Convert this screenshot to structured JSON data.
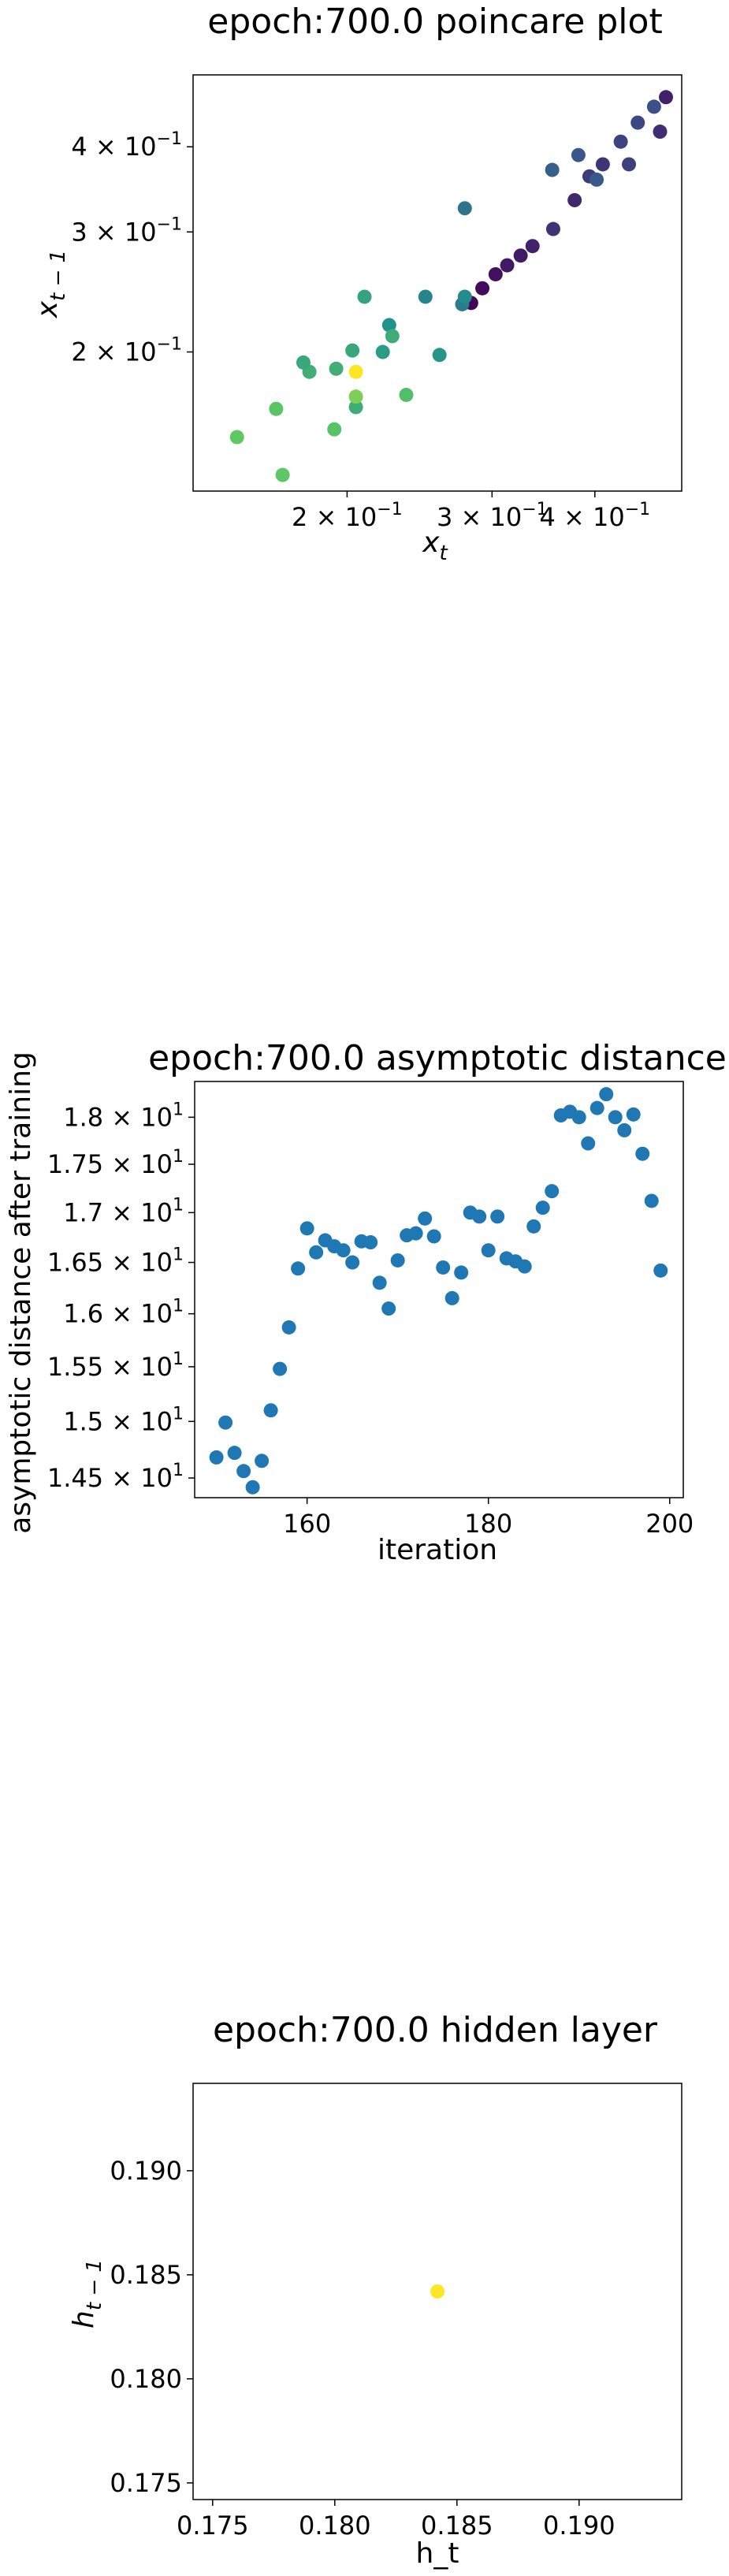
{
  "chart_data": [
    {
      "type": "scatter",
      "title": "epoch:700.0 poincare plot",
      "xlabel": "x_t",
      "ylabel": "x_{t-1}",
      "xscale": "log",
      "yscale": "log",
      "xlim": [
        0.13,
        0.51
      ],
      "ylim": [
        0.125,
        0.51
      ],
      "grid": false,
      "x_ticks": [
        {
          "value": 0.2,
          "mantissa": "2",
          "exponent": "−1"
        },
        {
          "value": 0.3,
          "mantissa": "3",
          "exponent": "−1"
        },
        {
          "value": 0.4,
          "mantissa": "4",
          "exponent": "−1"
        }
      ],
      "y_ticks": [
        {
          "value": 0.2,
          "mantissa": "2",
          "exponent": "−1"
        },
        {
          "value": 0.3,
          "mantissa": "3",
          "exponent": "−1"
        },
        {
          "value": 0.4,
          "mantissa": "4",
          "exponent": "−1"
        }
      ],
      "colormap": "viridis",
      "points": [
        {
          "x": 0.283,
          "y": 0.236,
          "c": 0.02
        },
        {
          "x": 0.292,
          "y": 0.248,
          "c": 0.03
        },
        {
          "x": 0.303,
          "y": 0.26,
          "c": 0.05
        },
        {
          "x": 0.313,
          "y": 0.268,
          "c": 0.07
        },
        {
          "x": 0.325,
          "y": 0.277,
          "c": 0.08
        },
        {
          "x": 0.336,
          "y": 0.286,
          "c": 0.1
        },
        {
          "x": 0.356,
          "y": 0.303,
          "c": 0.15
        },
        {
          "x": 0.378,
          "y": 0.334,
          "c": 0.12
        },
        {
          "x": 0.394,
          "y": 0.362,
          "c": 0.18
        },
        {
          "x": 0.409,
          "y": 0.377,
          "c": 0.16
        },
        {
          "x": 0.43,
          "y": 0.407,
          "c": 0.2
        },
        {
          "x": 0.451,
          "y": 0.434,
          "c": 0.22
        },
        {
          "x": 0.472,
          "y": 0.458,
          "c": 0.24
        },
        {
          "x": 0.488,
          "y": 0.473,
          "c": 0.1
        },
        {
          "x": 0.48,
          "y": 0.421,
          "c": 0.14
        },
        {
          "x": 0.44,
          "y": 0.377,
          "c": 0.19
        },
        {
          "x": 0.402,
          "y": 0.358,
          "c": 0.28
        },
        {
          "x": 0.382,
          "y": 0.389,
          "c": 0.27
        },
        {
          "x": 0.355,
          "y": 0.37,
          "c": 0.3
        },
        {
          "x": 0.278,
          "y": 0.325,
          "c": 0.38
        },
        {
          "x": 0.276,
          "y": 0.235,
          "c": 0.42
        },
        {
          "x": 0.278,
          "y": 0.241,
          "c": 0.48
        },
        {
          "x": 0.249,
          "y": 0.241,
          "c": 0.45
        },
        {
          "x": 0.259,
          "y": 0.198,
          "c": 0.52
        },
        {
          "x": 0.225,
          "y": 0.219,
          "c": 0.5
        },
        {
          "x": 0.221,
          "y": 0.2,
          "c": 0.55
        },
        {
          "x": 0.21,
          "y": 0.241,
          "c": 0.58
        },
        {
          "x": 0.227,
          "y": 0.211,
          "c": 0.62
        },
        {
          "x": 0.203,
          "y": 0.201,
          "c": 0.6
        },
        {
          "x": 0.18,
          "y": 0.187,
          "c": 0.63
        },
        {
          "x": 0.177,
          "y": 0.193,
          "c": 0.6
        },
        {
          "x": 0.194,
          "y": 0.189,
          "c": 0.63
        },
        {
          "x": 0.205,
          "y": 0.166,
          "c": 0.62
        },
        {
          "x": 0.236,
          "y": 0.173,
          "c": 0.7
        },
        {
          "x": 0.205,
          "y": 0.172,
          "c": 0.8
        },
        {
          "x": 0.193,
          "y": 0.154,
          "c": 0.72
        },
        {
          "x": 0.164,
          "y": 0.165,
          "c": 0.73
        },
        {
          "x": 0.147,
          "y": 0.15,
          "c": 0.75
        },
        {
          "x": 0.167,
          "y": 0.132,
          "c": 0.74
        },
        {
          "x": 0.205,
          "y": 0.187,
          "c": 1.0
        }
      ]
    },
    {
      "type": "scatter",
      "title": "epoch:700.0 asymptotic distance",
      "xlabel": "iteration",
      "ylabel": "asymptotic distance after training",
      "xscale": "linear",
      "yscale": "log",
      "xlim": [
        147.6,
        201.5
      ],
      "ylim": [
        14.33,
        18.39
      ],
      "grid": false,
      "color": "#1f77b4",
      "x_ticks": [
        {
          "value": 160,
          "label": "160"
        },
        {
          "value": 180,
          "label": "180"
        },
        {
          "value": 200,
          "label": "200"
        }
      ],
      "y_ticks": [
        {
          "value": 14.5,
          "mantissa": "1.45",
          "exponent": "1"
        },
        {
          "value": 15,
          "mantissa": "1.5",
          "exponent": "1"
        },
        {
          "value": 15.5,
          "mantissa": "1.55",
          "exponent": "1"
        },
        {
          "value": 16,
          "mantissa": "1.6",
          "exponent": "1"
        },
        {
          "value": 16.5,
          "mantissa": "1.65",
          "exponent": "1"
        },
        {
          "value": 17,
          "mantissa": "1.7",
          "exponent": "1"
        },
        {
          "value": 17.5,
          "mantissa": "1.75",
          "exponent": "1"
        },
        {
          "value": 18,
          "mantissa": "1.8",
          "exponent": "1"
        }
      ],
      "points": [
        {
          "x": 150,
          "y": 14.68
        },
        {
          "x": 151,
          "y": 14.99
        },
        {
          "x": 152,
          "y": 14.72
        },
        {
          "x": 153,
          "y": 14.56
        },
        {
          "x": 154,
          "y": 14.42
        },
        {
          "x": 155,
          "y": 14.65
        },
        {
          "x": 156,
          "y": 15.1
        },
        {
          "x": 157,
          "y": 15.48
        },
        {
          "x": 158,
          "y": 15.87
        },
        {
          "x": 159,
          "y": 16.44
        },
        {
          "x": 160,
          "y": 16.84
        },
        {
          "x": 161,
          "y": 16.6
        },
        {
          "x": 162,
          "y": 16.72
        },
        {
          "x": 163,
          "y": 16.66
        },
        {
          "x": 164,
          "y": 16.62
        },
        {
          "x": 165,
          "y": 16.5
        },
        {
          "x": 166,
          "y": 16.71
        },
        {
          "x": 167,
          "y": 16.7
        },
        {
          "x": 168,
          "y": 16.3
        },
        {
          "x": 169,
          "y": 16.05
        },
        {
          "x": 170,
          "y": 16.52
        },
        {
          "x": 171,
          "y": 16.77
        },
        {
          "x": 172,
          "y": 16.79
        },
        {
          "x": 173,
          "y": 16.94
        },
        {
          "x": 174,
          "y": 16.76
        },
        {
          "x": 175,
          "y": 16.45
        },
        {
          "x": 176,
          "y": 16.15
        },
        {
          "x": 177,
          "y": 16.4
        },
        {
          "x": 178,
          "y": 17.0
        },
        {
          "x": 179,
          "y": 16.96
        },
        {
          "x": 180,
          "y": 16.62
        },
        {
          "x": 181,
          "y": 16.96
        },
        {
          "x": 182,
          "y": 16.54
        },
        {
          "x": 183,
          "y": 16.51
        },
        {
          "x": 184,
          "y": 16.46
        },
        {
          "x": 185,
          "y": 16.86
        },
        {
          "x": 186,
          "y": 17.05
        },
        {
          "x": 187,
          "y": 17.22
        },
        {
          "x": 188,
          "y": 18.02
        },
        {
          "x": 189,
          "y": 18.06
        },
        {
          "x": 190,
          "y": 18.0
        },
        {
          "x": 191,
          "y": 17.72
        },
        {
          "x": 192,
          "y": 18.1
        },
        {
          "x": 193,
          "y": 18.25
        },
        {
          "x": 194,
          "y": 18.0
        },
        {
          "x": 195,
          "y": 17.86
        },
        {
          "x": 196,
          "y": 18.03
        },
        {
          "x": 197,
          "y": 17.61
        },
        {
          "x": 198,
          "y": 17.12
        },
        {
          "x": 199,
          "y": 16.42
        }
      ]
    },
    {
      "type": "scatter",
      "title": "epoch:700.0 hidden layer",
      "xlabel": "h_t",
      "ylabel": "h_{t-1}",
      "xscale": "linear",
      "yscale": "linear",
      "xlim": [
        0.1742,
        0.1942
      ],
      "ylim": [
        0.1742,
        0.1942
      ],
      "grid": false,
      "color": "#fde725",
      "x_ticks": [
        {
          "value": 0.175,
          "label": "0.175"
        },
        {
          "value": 0.18,
          "label": "0.180"
        },
        {
          "value": 0.185,
          "label": "0.185"
        },
        {
          "value": 0.19,
          "label": "0.190"
        }
      ],
      "y_ticks": [
        {
          "value": 0.175,
          "label": "0.175"
        },
        {
          "value": 0.18,
          "label": "0.180"
        },
        {
          "value": 0.185,
          "label": "0.185"
        },
        {
          "value": 0.19,
          "label": "0.190"
        }
      ],
      "points": [
        {
          "x": 0.1842,
          "y": 0.1842
        }
      ]
    }
  ]
}
